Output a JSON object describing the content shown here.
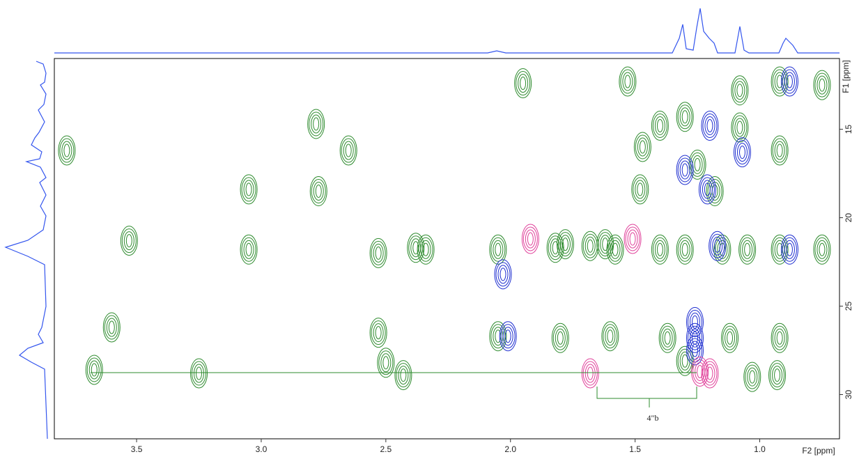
{
  "chart_data": {
    "type": "contour",
    "x_label": "F2 [ppm]",
    "y_label": "F1 [ppm]",
    "annotation": "4\"b",
    "xlim": [
      3.83,
      0.68
    ],
    "ylim": [
      11.0,
      32.5
    ],
    "xticks": [
      3.5,
      {
        "value": 3.0,
        "label": "3.0"
      },
      2.5,
      {
        "value": 2.0,
        "label": "2.0"
      },
      1.5,
      {
        "value": 1.0,
        "label": "1.0"
      }
    ],
    "yticks": [
      15,
      20,
      25,
      30
    ],
    "series": [
      {
        "color": "#2e8b2e",
        "x": [
          3.78,
          3.67,
          3.6,
          3.53,
          3.25,
          3.05,
          3.05,
          2.78,
          2.77,
          2.65,
          2.53,
          2.53,
          2.5,
          2.43,
          2.38,
          2.34,
          2.05,
          2.05,
          1.95,
          1.82,
          1.8,
          1.78,
          1.68,
          1.62,
          1.6,
          1.58,
          1.53,
          1.48,
          1.47,
          1.4,
          1.4,
          1.37,
          1.3,
          1.3,
          1.3,
          1.25,
          1.18,
          1.15,
          1.12,
          1.08,
          1.08,
          1.05,
          1.03,
          0.92,
          0.92,
          0.92,
          0.92,
          0.75,
          0.75,
          0.93
        ],
        "values": [
          16.2,
          28.6,
          26.2,
          21.3,
          28.8,
          18.4,
          21.8,
          14.7,
          18.5,
          16.2,
          22.0,
          26.5,
          28.2,
          28.9,
          21.7,
          21.8,
          21.8,
          26.7,
          12.4,
          21.7,
          26.8,
          21.5,
          21.6,
          21.5,
          26.7,
          21.8,
          12.3,
          18.4,
          16.0,
          14.8,
          21.8,
          26.8,
          14.3,
          21.8,
          28.1,
          17.0,
          18.5,
          21.8,
          26.8,
          12.8,
          14.9,
          21.8,
          29.0,
          16.2,
          21.8,
          26.8,
          12.3,
          12.5,
          21.8,
          28.9
        ]
      },
      {
        "color": "#1f2fd0",
        "x": [
          2.01,
          1.3,
          1.2,
          1.21,
          1.17,
          1.07,
          0.88,
          0.88,
          1.26,
          1.26,
          1.26,
          2.03
        ],
        "values": [
          26.7,
          17.3,
          14.8,
          18.4,
          21.6,
          16.3,
          12.3,
          21.8,
          26.8,
          27.5,
          25.9,
          23.2
        ]
      },
      {
        "color": "#e0409a",
        "x": [
          1.92,
          1.68,
          1.51,
          1.2,
          1.24
        ],
        "values": [
          21.2,
          28.8,
          21.2,
          28.8,
          28.7
        ]
      }
    ]
  }
}
